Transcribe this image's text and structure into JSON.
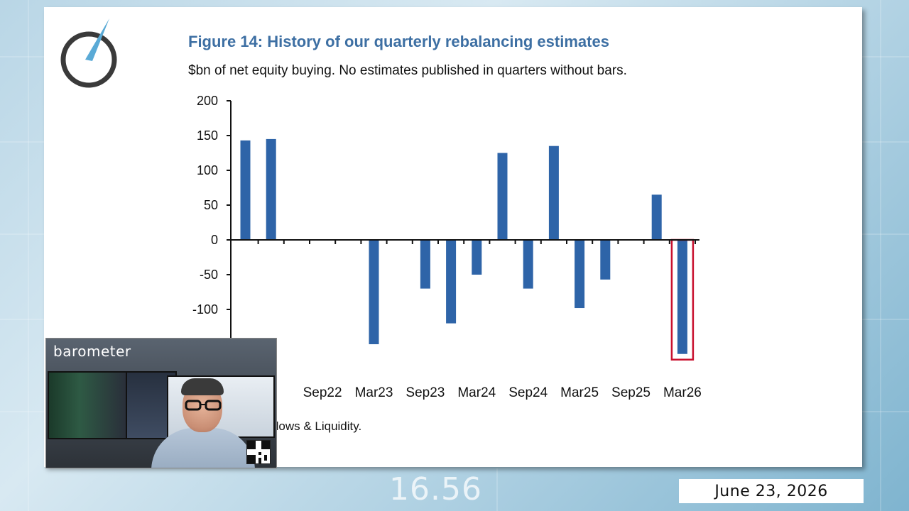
{
  "chart_data": {
    "type": "bar",
    "title": "Figure 14: History of our quarterly rebalancing estimates",
    "subtitle": "$bn of net equity buying. No estimates published in quarters without bars.",
    "x_tick_labels_visible": [
      "Sep22",
      "Mar23",
      "Sep23",
      "Mar24",
      "Sep24",
      "Mar25",
      "Sep25",
      "Mar26"
    ],
    "y_ticks": [
      200,
      150,
      100,
      50,
      0,
      -50,
      -100
    ],
    "ylim": [
      -170,
      200
    ],
    "bars": [
      {
        "slot": 0,
        "value": 143
      },
      {
        "slot": 1,
        "value": 145
      },
      {
        "slot": 5,
        "value": -150
      },
      {
        "slot": 7,
        "value": -70
      },
      {
        "slot": 8,
        "value": -120
      },
      {
        "slot": 9,
        "value": -50
      },
      {
        "slot": 10,
        "value": 125
      },
      {
        "slot": 11,
        "value": -70
      },
      {
        "slot": 12,
        "value": 135
      },
      {
        "slot": 13,
        "value": -98
      },
      {
        "slot": 14,
        "value": -57
      },
      {
        "slot": 16,
        "value": 65
      },
      {
        "slot": 17,
        "value": -164
      }
    ],
    "slot_count": 18,
    "highlighted_slot": 17,
    "bar_color": "#2e64a8",
    "highlight_color": "#c8102e"
  },
  "source_text": "organ Flows & Liquidity.",
  "broadcast": {
    "brand": "barometer",
    "date": "June 23, 2026",
    "background_numbers": [
      "16.56"
    ]
  }
}
